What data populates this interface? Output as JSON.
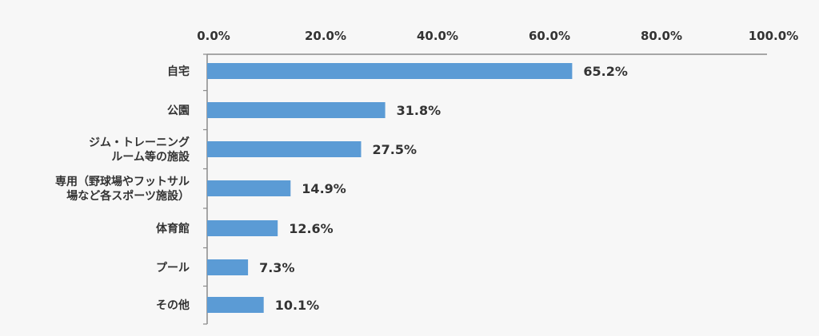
{
  "chart_data": {
    "type": "bar",
    "orientation": "horizontal",
    "categories": [
      [
        "自宅"
      ],
      [
        "公園"
      ],
      [
        "ジム・トレーニング",
        "ルーム等の施設"
      ],
      [
        "専用（野球場やフットサル",
        "場など各スポーツ施設）"
      ],
      [
        "体育館"
      ],
      [
        "プール"
      ],
      [
        "その他"
      ]
    ],
    "values": [
      65.2,
      31.8,
      27.5,
      14.9,
      12.6,
      7.3,
      10.1
    ],
    "value_labels": [
      "65.2%",
      "31.8%",
      "27.5%",
      "14.9%",
      "12.6%",
      "7.3%",
      "10.1%"
    ],
    "x_ticks": [
      0,
      20,
      40,
      60,
      80,
      100
    ],
    "x_tick_labels": [
      "0.0%",
      "20.0%",
      "40.0%",
      "60.0%",
      "80.0%",
      "100.0%"
    ],
    "xlim": [
      0,
      100
    ],
    "axis_position": "top",
    "grid": false,
    "title": "",
    "xlabel": "",
    "ylabel": "",
    "colors": {
      "bar": "#5b9bd5",
      "axis": "#8c8c8c",
      "text": "#333333",
      "background": "#f7f7f7"
    }
  }
}
